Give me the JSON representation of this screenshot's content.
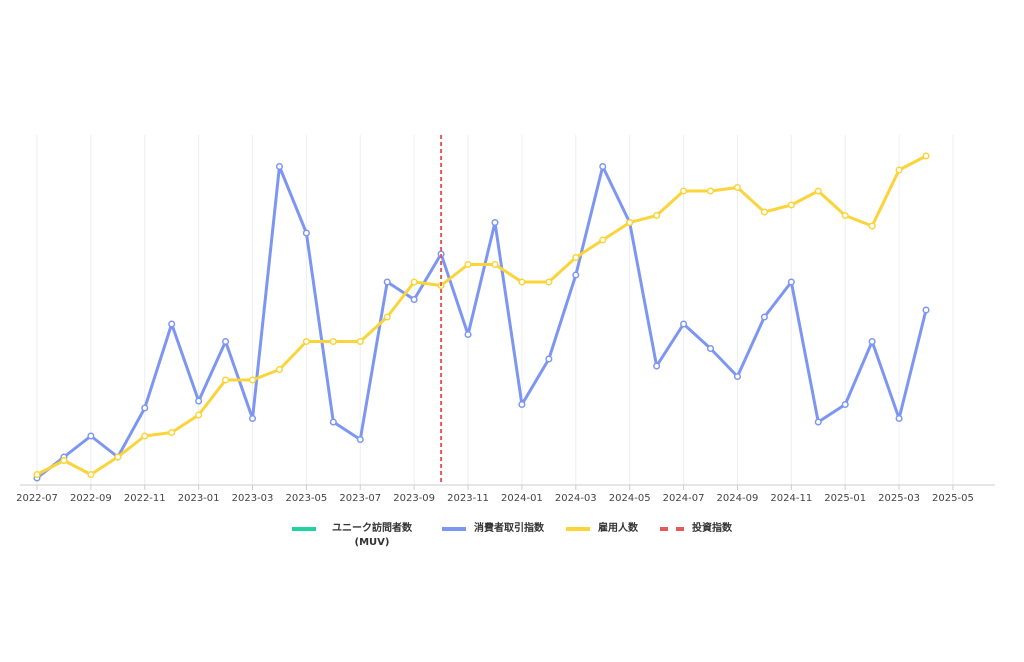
{
  "chart_data": {
    "type": "line",
    "x": [
      "2022-07",
      "2022-08",
      "2022-09",
      "2022-10",
      "2022-11",
      "2022-12",
      "2023-01",
      "2023-02",
      "2023-03",
      "2023-04",
      "2023-05",
      "2023-06",
      "2023-07",
      "2023-08",
      "2023-09",
      "2023-10",
      "2023-11",
      "2023-12",
      "2024-01",
      "2024-02",
      "2024-03",
      "2024-04",
      "2024-05",
      "2024-06",
      "2024-07",
      "2024-08",
      "2024-09",
      "2024-10",
      "2024-11",
      "2024-12",
      "2025-01",
      "2025-02",
      "2025-03",
      "2025-04"
    ],
    "xticks": [
      "2022-07",
      "2022-09",
      "2022-11",
      "2023-01",
      "2023-03",
      "2023-05",
      "2023-07",
      "2023-09",
      "2023-11",
      "2024-01",
      "2024-03",
      "2024-05",
      "2024-07",
      "2024-09",
      "2024-11",
      "2025-01",
      "2025-03",
      "2025-05"
    ],
    "ylim": [
      0,
      100
    ],
    "grid": true,
    "series": [
      {
        "name": "ユニーク訪問者数 (MUV)",
        "color": "#1fd3a0"
      },
      {
        "name": "消費者取引指数",
        "color": "#7d96f2",
        "values": [
          2,
          8,
          14,
          8,
          22,
          46,
          24,
          41,
          19,
          91,
          72,
          18,
          13,
          58,
          53,
          66,
          43,
          75,
          23,
          36,
          60,
          91,
          75,
          34,
          46,
          39,
          31,
          48,
          58,
          18,
          23,
          41,
          19,
          50
        ]
      },
      {
        "name": "雇用人数",
        "color": "#fbd43a",
        "values": [
          3,
          7,
          3,
          8,
          14,
          15,
          20,
          30,
          30,
          33,
          41,
          41,
          41,
          48,
          58,
          57,
          63,
          63,
          58,
          58,
          65,
          70,
          75,
          77,
          84,
          84,
          85,
          78,
          80,
          84,
          77,
          74,
          90,
          94
        ]
      },
      {
        "name": "投資指数",
        "color": "#e05a5a",
        "x": "2023-10"
      }
    ]
  }
}
